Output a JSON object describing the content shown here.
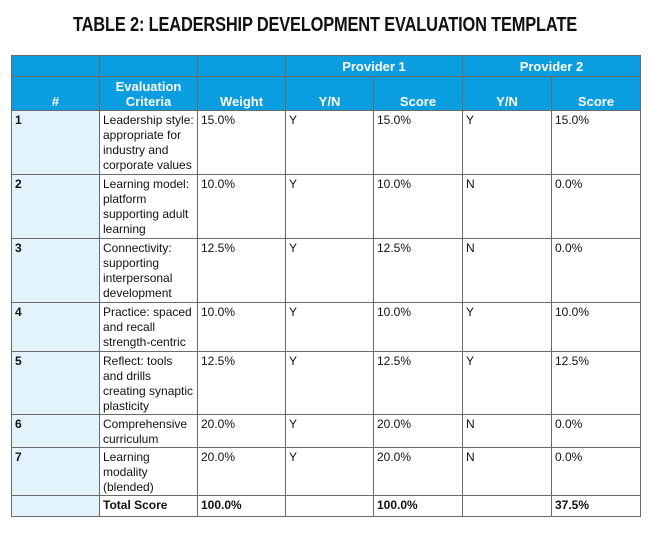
{
  "title": "TABLE 2: LEADERSHIP DEVELOPMENT EVALUATION TEMPLATE",
  "header": {
    "provider1": "Provider 1",
    "provider2": "Provider 2",
    "num": "#",
    "criteria": "Evaluation Criteria",
    "weight": "Weight",
    "yn1": "Y/N",
    "score1": "Score",
    "yn2": "Y/N",
    "score2": "Score"
  },
  "rows": [
    {
      "num": "1",
      "criteria": "Leadership style: appropriate for industry and corporate values",
      "weight": "15.0%",
      "p1_yn": "Y",
      "p1_score": "15.0%",
      "p2_yn": "Y",
      "p2_score": "15.0%"
    },
    {
      "num": "2",
      "criteria": "Learning model: platform supporting adult learning",
      "weight": "10.0%",
      "p1_yn": "Y",
      "p1_score": "10.0%",
      "p2_yn": "N",
      "p2_score": "0.0%"
    },
    {
      "num": "3",
      "criteria": "Connectivity: supporting interpersonal development",
      "weight": "12.5%",
      "p1_yn": "Y",
      "p1_score": "12.5%",
      "p2_yn": "N",
      "p2_score": "0.0%"
    },
    {
      "num": "4",
      "criteria": "Practice: spaced and recall strength-centric",
      "weight": "10.0%",
      "p1_yn": "Y",
      "p1_score": "10.0%",
      "p2_yn": "Y",
      "p2_score": "10.0%"
    },
    {
      "num": "5",
      "criteria": "Reflect: tools and drills creating synaptic plasticity",
      "weight": "12.5%",
      "p1_yn": "Y",
      "p1_score": "12.5%",
      "p2_yn": "Y",
      "p2_score": "12.5%"
    },
    {
      "num": "6",
      "criteria": "Comprehensive curriculum",
      "weight": "20.0%",
      "p1_yn": "Y",
      "p1_score": "20.0%",
      "p2_yn": "N",
      "p2_score": "0.0%"
    },
    {
      "num": "7",
      "criteria": "Learning modality (blended)",
      "weight": "20.0%",
      "p1_yn": "Y",
      "p1_score": "20.0%",
      "p2_yn": "N",
      "p2_score": "0.0%"
    }
  ],
  "total": {
    "label": "Total Score",
    "weight": "100.0%",
    "p1_score": "100.0%",
    "p2_score": "37.5%"
  }
}
